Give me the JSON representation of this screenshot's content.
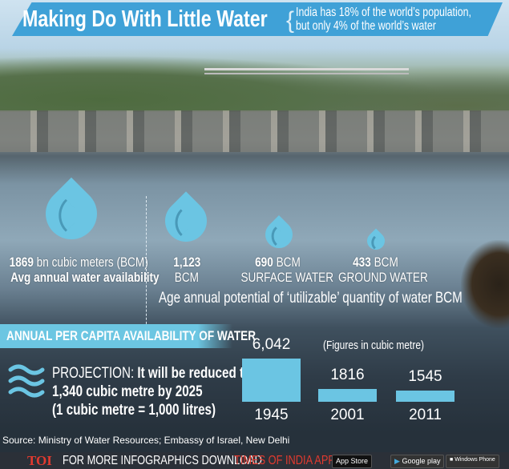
{
  "header": {
    "title": "Making Do With Little Water",
    "subtitle_line1": "India has 18% of the world’s population,",
    "subtitle_line2": "but only 4% of the world’s water"
  },
  "drops": [
    {
      "value": "1869",
      "unit": " bn cubic meters (BCM)",
      "label": "Avg annual water availability"
    },
    {
      "value": "1,123",
      "unit": "",
      "label": "BCM"
    },
    {
      "value": "690",
      "unit": " BCM",
      "label": "SURFACE WATER"
    },
    {
      "value": "433",
      "unit": " BCM",
      "label": "GROUND WATER"
    }
  ],
  "drops_caption": "Age annual potential of ‘utilizable’ quantity of water BCM",
  "section": {
    "title": "ANNUAL PER CAPITA AVAILABILITY OF WATER",
    "projection_label": "PROJECTION:",
    "projection_text1": " It will be reduced to",
    "projection_text2": "1,340 cubic metre by 2025",
    "projection_text3": "(1 cubic metre = 1,000 litres)"
  },
  "chart_data": {
    "type": "bar",
    "categories": [
      "1945",
      "2001",
      "2011"
    ],
    "values": [
      6042,
      1816,
      1545
    ],
    "value_labels": [
      "6,042",
      "1816",
      "1545"
    ],
    "note": "(Figures in cubic metre)",
    "color": "#6bc5e3"
  },
  "source": "Source: Ministry of Water Resources; Embassy of Israel, New Delhi",
  "footer": {
    "logo": "TOI",
    "text": "FOR MORE  INFOGRAPHICS DOWNLOAD ",
    "app": "TIMES OF INDIA  APP",
    "stores": [
      "App Store",
      "Google play",
      "Windows Phone"
    ]
  },
  "colors": {
    "banner": "#3fa1d7",
    "accent": "#6bc5e3",
    "brand_red": "#e23a2f"
  }
}
